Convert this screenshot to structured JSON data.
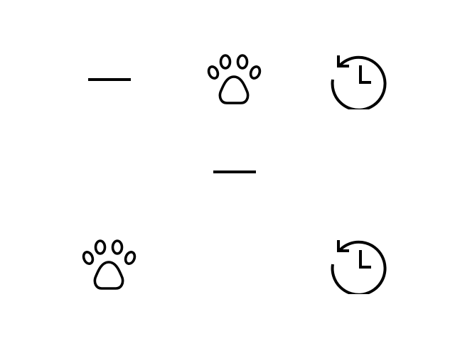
{
  "icons": [
    {
      "name": "minus-icon",
      "color": "#000000"
    },
    {
      "name": "paw-icon",
      "color": "#000000"
    },
    {
      "name": "history-icon",
      "color": "#000000"
    },
    {
      "name": "minus-icon",
      "color": "#000000"
    },
    {
      "name": "paw-icon",
      "color": "#000000"
    },
    {
      "name": "history-icon",
      "color": "#000000"
    }
  ]
}
